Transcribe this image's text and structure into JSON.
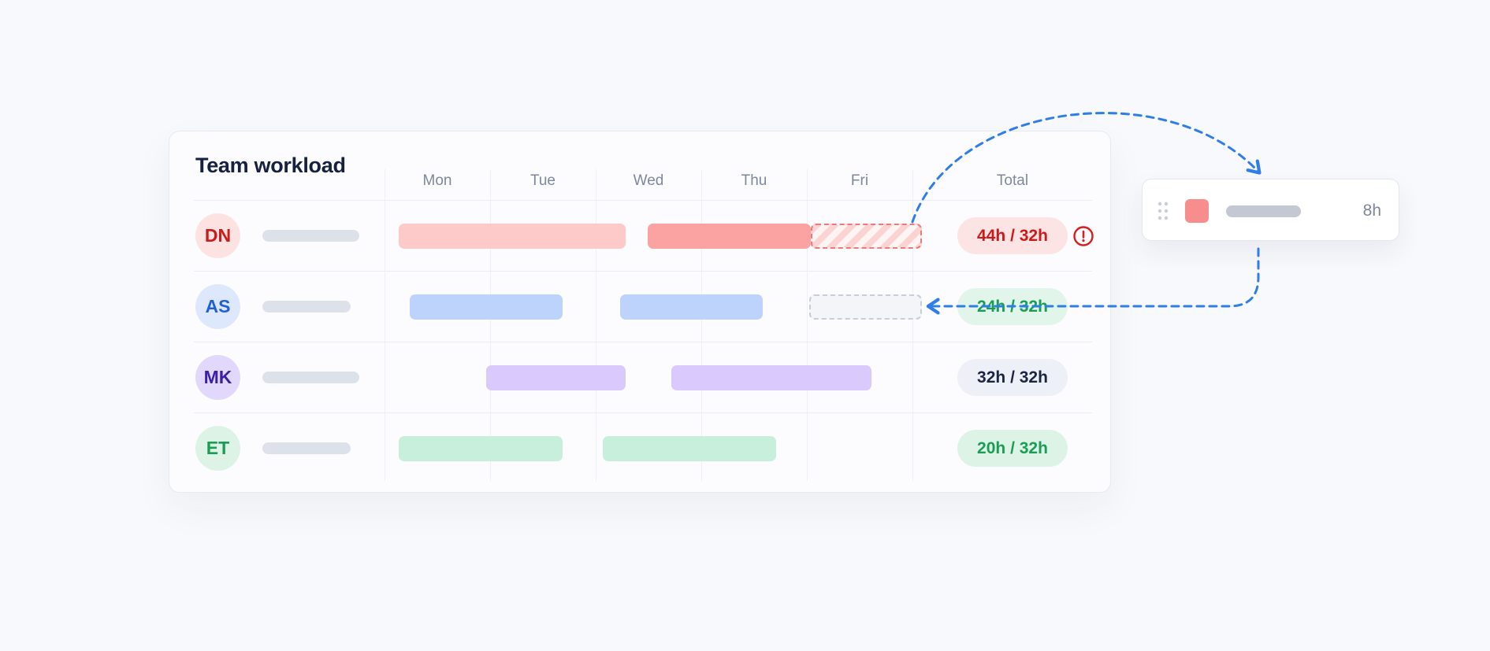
{
  "title": "Team workload",
  "days": [
    "Mon",
    "Tue",
    "Wed",
    "Thu",
    "Fri"
  ],
  "total_header": "Total",
  "rows": [
    {
      "initials": "DN",
      "total": "44h / 32h",
      "avatar_bg": "#fde2e2",
      "avatar_fg": "#cc1a1a",
      "pill_bg": "#fde4e4",
      "pill_fg": "#cc1a1a",
      "over_capacity": true
    },
    {
      "initials": "AS",
      "total": "24h / 32h",
      "avatar_bg": "#dde8fd",
      "avatar_fg": "#2160d8",
      "pill_bg": "#e1f5ea",
      "pill_fg": "#1a9e55"
    },
    {
      "initials": "MK",
      "total": "32h / 32h",
      "avatar_bg": "#e2d8fb",
      "avatar_fg": "#3d1fa8",
      "pill_bg": "#eef0f8",
      "pill_fg": "#1b2540"
    },
    {
      "initials": "ET",
      "total": "20h / 32h",
      "avatar_bg": "#dcf3e6",
      "avatar_fg": "#1a9e55",
      "pill_bg": "#dcf3e6",
      "pill_fg": "#1a9e55"
    }
  ],
  "task_card": {
    "hours": "8h",
    "swatch_color": "#f88d8d",
    "drag_icon": "drag-handle-icon"
  },
  "colors": {
    "arrow": "#2f7de8",
    "alert": "#d81e1e"
  },
  "icons": {
    "alert": "alert-circle-icon"
  }
}
